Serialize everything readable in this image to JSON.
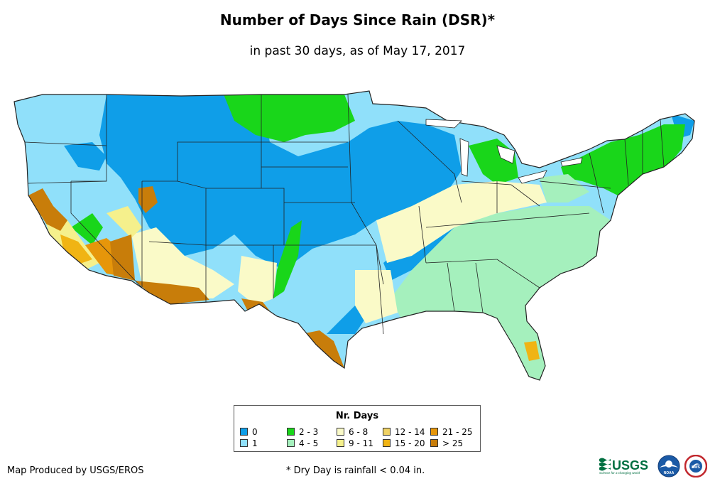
{
  "title": "Number of Days Since Rain (DSR)*",
  "subtitle": "in past 30 days, as of May 17, 2017",
  "legend": {
    "title": "Nr. Days",
    "items": [
      {
        "label": "0",
        "color": "#0f9ee8"
      },
      {
        "label": "1",
        "color": "#90e0fa"
      },
      {
        "label": "2 - 3",
        "color": "#19d61a"
      },
      {
        "label": "4 - 5",
        "color": "#a5f0bd"
      },
      {
        "label": "6 - 8",
        "color": "#fafac8"
      },
      {
        "label": "9 - 11",
        "color": "#f5f08c"
      },
      {
        "label": "12 - 14",
        "color": "#f0d264"
      },
      {
        "label": "15 - 20",
        "color": "#f0b414"
      },
      {
        "label": "21 - 25",
        "color": "#e6960a"
      },
      {
        "label": "> 25",
        "color": "#c87d0a"
      }
    ]
  },
  "credit": "Map Produced by USGS/EROS",
  "footnote": "* Dry Day is rainfall < 0.04 in.",
  "logos": {
    "usgs_text": "USGS",
    "usgs_tagline": "science for a changing world",
    "noaa_text": "NOAA",
    "nws_text": "NWS"
  }
}
